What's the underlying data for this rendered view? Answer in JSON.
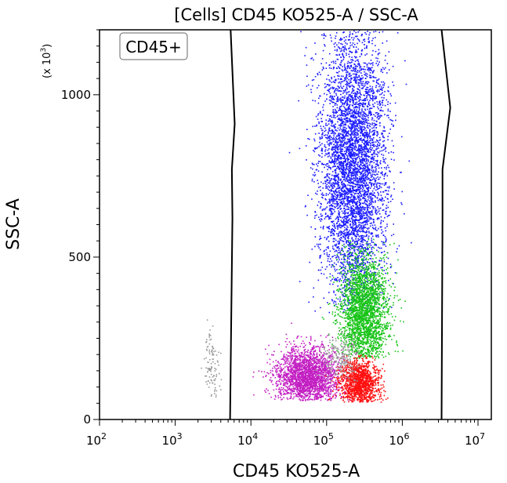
{
  "chart_data": {
    "type": "scatter",
    "title": "[Cells] CD45 KO525-A / SSC-A",
    "xlabel": "CD45 KO525-A",
    "ylabel": "SSC-A",
    "y_multiplier": "(x 10",
    "y_multiplier_exp": "3",
    "y_multiplier_close": ")",
    "x_scale": "log",
    "xlim": [
      100,
      15000000
    ],
    "ylim": [
      0,
      1200
    ],
    "x_ticks": [
      {
        "value": 100,
        "base": "10",
        "exp": "2"
      },
      {
        "value": 1000,
        "base": "10",
        "exp": "3"
      },
      {
        "value": 10000,
        "base": "10",
        "exp": "4"
      },
      {
        "value": 100000,
        "base": "10",
        "exp": "5"
      },
      {
        "value": 1000000,
        "base": "10",
        "exp": "6"
      },
      {
        "value": 10000000,
        "base": "10",
        "exp": "7"
      }
    ],
    "y_ticks": [
      {
        "value": 0,
        "label": "0"
      },
      {
        "value": 500,
        "label": "500"
      },
      {
        "value": 1000,
        "label": "1000"
      }
    ],
    "gate": {
      "name": "CD45+",
      "left_boundary": [
        [
          5300,
          0
        ],
        [
          5700,
          620
        ],
        [
          5600,
          770
        ],
        [
          6100,
          910
        ],
        [
          5400,
          1200
        ]
      ],
      "right_boundary": [
        [
          3300000,
          0
        ],
        [
          3400000,
          620
        ],
        [
          3400000,
          770
        ],
        [
          4300000,
          960
        ],
        [
          3300000,
          1200
        ]
      ]
    },
    "series": [
      {
        "color": "#1a1aff",
        "cluster": {
          "x_center": 220000,
          "x_spread_decades": 0.22,
          "y_center": 780,
          "y_spread": 220,
          "y_range": [
            330,
            1200
          ],
          "count": 5200
        }
      },
      {
        "color": "#18c418",
        "cluster": {
          "x_center": 310000,
          "x_spread_decades": 0.16,
          "y_center": 330,
          "y_spread": 90,
          "y_range": [
            190,
            560
          ],
          "count": 2600
        }
      },
      {
        "color": "#c21ec2",
        "cluster": {
          "x_center": 55000,
          "x_spread_decades": 0.22,
          "y_center": 135,
          "y_spread": 45,
          "y_range": [
            60,
            300
          ],
          "count": 2300
        }
      },
      {
        "color": "#ff1010",
        "cluster": {
          "x_center": 270000,
          "x_spread_decades": 0.13,
          "y_center": 115,
          "y_spread": 35,
          "y_range": [
            55,
            200
          ],
          "count": 1400
        }
      },
      {
        "color": "#999999",
        "cluster": {
          "x_center": 3000,
          "x_spread_decades": 0.05,
          "y_center": 170,
          "y_spread": 60,
          "y_range": [
            60,
            370
          ],
          "count": 110
        }
      },
      {
        "color": "#999999",
        "cluster": {
          "x_center": 150000,
          "x_spread_decades": 0.12,
          "y_center": 190,
          "y_spread": 40,
          "y_range": [
            120,
            380
          ],
          "count": 220
        }
      }
    ]
  }
}
